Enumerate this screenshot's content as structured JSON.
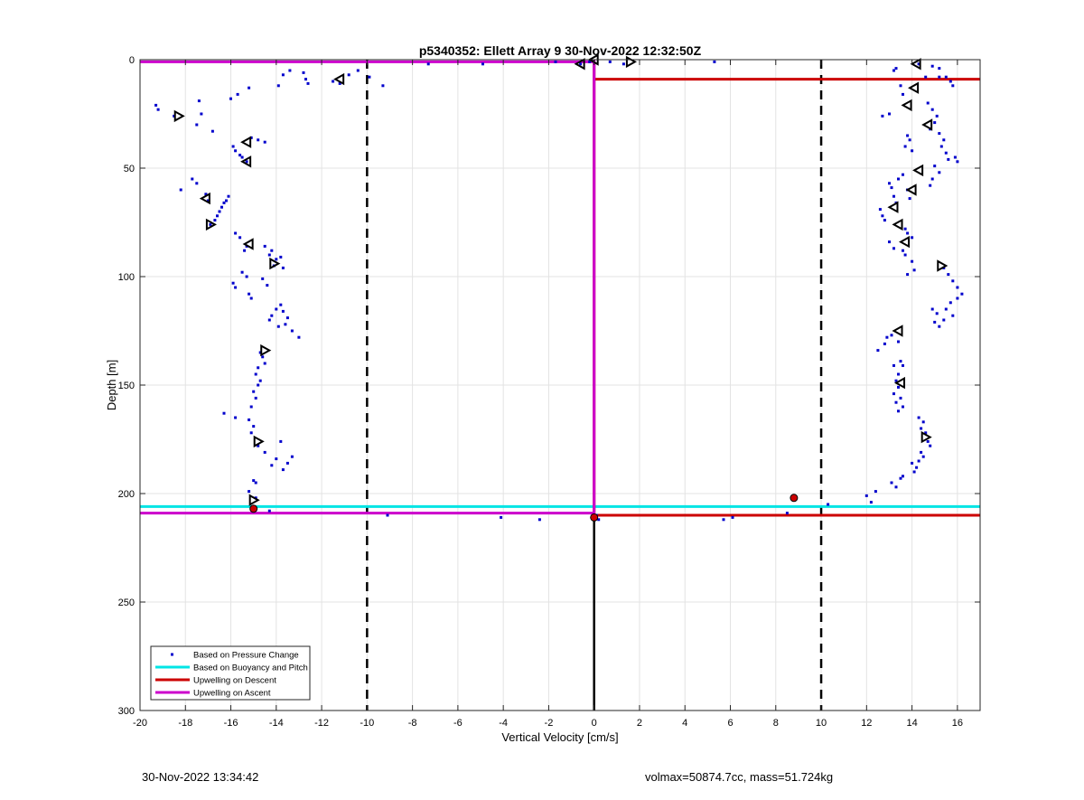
{
  "footer": {
    "left": "30-Nov-2022 13:34:42",
    "right": "volmax=50874.7cc, mass=51.724kg"
  },
  "chart_data": {
    "type": "scatter",
    "title": "p5340352: Ellett Array 9 30-Nov-2022 12:32:50Z",
    "xlabel": "Vertical Velocity [cm/s]",
    "ylabel": "Depth [m]",
    "xlim": [
      -20,
      17
    ],
    "ylim": [
      0,
      300
    ],
    "y_reversed": true,
    "grid": true,
    "x_ticks": [
      -20,
      -18,
      -16,
      -14,
      -12,
      -10,
      -8,
      -6,
      -4,
      -2,
      0,
      2,
      4,
      6,
      8,
      10,
      12,
      14,
      16
    ],
    "y_ticks": [
      0,
      50,
      100,
      150,
      200,
      250,
      300
    ],
    "legend_position": "bottom-left",
    "legend": [
      {
        "label": "Based on Pressure Change",
        "color": "#0000cc",
        "kind": "point"
      },
      {
        "label": "Based on Buoyancy and Pitch",
        "color": "#00e5e5",
        "kind": "line"
      },
      {
        "label": "Upwelling on Descent",
        "color": "#cc0000",
        "kind": "line"
      },
      {
        "label": "Upwelling on Ascent",
        "color": "#cc00cc",
        "kind": "line"
      }
    ],
    "reference_lines": [
      {
        "x": -10,
        "style": "dashed",
        "color": "#000000"
      },
      {
        "x": 10,
        "style": "dashed",
        "color": "#000000"
      },
      {
        "x": 0,
        "style": "solid",
        "color": "#000000"
      }
    ],
    "series": [
      {
        "name": "Based on Pressure Change",
        "color": "#0000cc",
        "points": [
          [
            -19.3,
            21
          ],
          [
            -19.2,
            23
          ],
          [
            -18.5,
            26
          ],
          [
            -18.2,
            60
          ],
          [
            -17.7,
            55
          ],
          [
            -17.5,
            57
          ],
          [
            -17.3,
            25
          ],
          [
            -17.5,
            30
          ],
          [
            -17.4,
            19
          ],
          [
            -17.1,
            62
          ],
          [
            -17.0,
            65
          ],
          [
            -16.9,
            76
          ],
          [
            -16.8,
            33
          ],
          [
            -16.7,
            74
          ],
          [
            -16.6,
            72
          ],
          [
            -16.5,
            70
          ],
          [
            -16.4,
            68
          ],
          [
            -16.3,
            66
          ],
          [
            -16.2,
            65
          ],
          [
            -16.1,
            63
          ],
          [
            -16.0,
            18
          ],
          [
            -15.9,
            40
          ],
          [
            -15.8,
            42
          ],
          [
            -15.6,
            44
          ],
          [
            -15.5,
            45
          ],
          [
            -15.3,
            47
          ],
          [
            -15.8,
            80
          ],
          [
            -15.6,
            82
          ],
          [
            -15.3,
            86
          ],
          [
            -15.4,
            88
          ],
          [
            -15.9,
            103
          ],
          [
            -15.8,
            105
          ],
          [
            -15.5,
            98
          ],
          [
            -15.3,
            100
          ],
          [
            -15.2,
            108
          ],
          [
            -15.1,
            110
          ],
          [
            -15.7,
            16
          ],
          [
            -15.2,
            13
          ],
          [
            -15.1,
            36
          ],
          [
            -14.8,
            37
          ],
          [
            -14.5,
            38
          ],
          [
            -14.3,
            90
          ],
          [
            -14.1,
            95
          ],
          [
            -14.0,
            92
          ],
          [
            -13.8,
            91
          ],
          [
            -13.7,
            96
          ],
          [
            -14.5,
            86
          ],
          [
            -14.2,
            88
          ],
          [
            -14.6,
            101
          ],
          [
            -14.4,
            104
          ],
          [
            -14.3,
            120
          ],
          [
            -14.2,
            118
          ],
          [
            -14.0,
            115
          ],
          [
            -13.9,
            123
          ],
          [
            -13.8,
            113
          ],
          [
            -13.7,
            116
          ],
          [
            -13.6,
            122
          ],
          [
            -13.5,
            119
          ],
          [
            -13.3,
            125
          ],
          [
            -13.0,
            128
          ],
          [
            -14.7,
            135
          ],
          [
            -14.6,
            137
          ],
          [
            -14.5,
            140
          ],
          [
            -14.8,
            142
          ],
          [
            -14.9,
            145
          ],
          [
            -14.7,
            148
          ],
          [
            -14.8,
            150
          ],
          [
            -15.0,
            153
          ],
          [
            -14.9,
            156
          ],
          [
            -15.1,
            160
          ],
          [
            -15.2,
            166
          ],
          [
            -15.0,
            169
          ],
          [
            -15.1,
            172
          ],
          [
            -16.3,
            163
          ],
          [
            -15.8,
            165
          ],
          [
            -14.8,
            178
          ],
          [
            -14.5,
            181
          ],
          [
            -14.2,
            187
          ],
          [
            -14.0,
            184
          ],
          [
            -13.8,
            176
          ],
          [
            -13.7,
            189
          ],
          [
            -13.5,
            186
          ],
          [
            -13.3,
            183
          ],
          [
            -14.9,
            195
          ],
          [
            -15.2,
            199
          ],
          [
            -14.9,
            202
          ],
          [
            -15.0,
            194
          ],
          [
            -14.3,
            208
          ],
          [
            -13.9,
            12
          ],
          [
            -13.7,
            7
          ],
          [
            -13.4,
            5
          ],
          [
            -12.8,
            6
          ],
          [
            -12.7,
            9
          ],
          [
            -12.6,
            11
          ],
          [
            -11.5,
            10
          ],
          [
            -11.2,
            11
          ],
          [
            -10.8,
            7
          ],
          [
            -10.4,
            5
          ],
          [
            -9.9,
            8
          ],
          [
            -9.3,
            12
          ],
          [
            -9.1,
            210
          ],
          [
            -7.3,
            2
          ],
          [
            -4.9,
            2
          ],
          [
            -4.1,
            211
          ],
          [
            -2.4,
            212
          ],
          [
            -1.7,
            1
          ],
          [
            -0.6,
            2
          ],
          [
            -0.2,
            1
          ],
          [
            0.1,
            210
          ],
          [
            0.2,
            212
          ],
          [
            0.7,
            1
          ],
          [
            1.3,
            2
          ],
          [
            5.3,
            1
          ],
          [
            5.7,
            212
          ],
          [
            6.1,
            211
          ],
          [
            8.5,
            209
          ],
          [
            10.3,
            205
          ],
          [
            12.0,
            201
          ],
          [
            12.2,
            204
          ],
          [
            12.4,
            199
          ],
          [
            12.5,
            134
          ],
          [
            12.6,
            69
          ],
          [
            12.7,
            72
          ],
          [
            12.8,
            74
          ],
          [
            12.7,
            26
          ],
          [
            12.9,
            128
          ],
          [
            12.8,
            131
          ],
          [
            13.0,
            25
          ],
          [
            13.1,
            127
          ],
          [
            13.2,
            141
          ],
          [
            13.3,
            197
          ],
          [
            13.1,
            195
          ],
          [
            13.0,
            84
          ],
          [
            13.2,
            87
          ],
          [
            13.4,
            130
          ],
          [
            13.5,
            193
          ],
          [
            13.6,
            192
          ],
          [
            13.2,
            5
          ],
          [
            13.3,
            4
          ],
          [
            13.5,
            12
          ],
          [
            13.6,
            16
          ],
          [
            13.2,
            63
          ],
          [
            13.3,
            66
          ],
          [
            13.0,
            57
          ],
          [
            13.1,
            59
          ],
          [
            13.4,
            55
          ],
          [
            13.6,
            53
          ],
          [
            13.4,
            145
          ],
          [
            13.3,
            148
          ],
          [
            13.4,
            151
          ],
          [
            13.2,
            154
          ],
          [
            13.5,
            156
          ],
          [
            13.3,
            158
          ],
          [
            13.6,
            160
          ],
          [
            13.4,
            162
          ],
          [
            13.5,
            139
          ],
          [
            13.6,
            141
          ],
          [
            13.8,
            35
          ],
          [
            13.9,
            37
          ],
          [
            13.7,
            40
          ],
          [
            14.0,
            42
          ],
          [
            13.8,
            60
          ],
          [
            13.9,
            64
          ],
          [
            13.7,
            78
          ],
          [
            13.8,
            80
          ],
          [
            14.0,
            82
          ],
          [
            13.6,
            88
          ],
          [
            13.7,
            90
          ],
          [
            14.0,
            93
          ],
          [
            14.1,
            97
          ],
          [
            13.8,
            99
          ],
          [
            14.0,
            186
          ],
          [
            14.2,
            188
          ],
          [
            14.1,
            190
          ],
          [
            14.3,
            185
          ],
          [
            14.5,
            183
          ],
          [
            14.4,
            181
          ],
          [
            14.3,
            165
          ],
          [
            14.5,
            167
          ],
          [
            14.4,
            170
          ],
          [
            14.6,
            172
          ],
          [
            14.7,
            176
          ],
          [
            14.8,
            178
          ],
          [
            14.3,
            2
          ],
          [
            14.6,
            8
          ],
          [
            14.9,
            3
          ],
          [
            15.2,
            4
          ],
          [
            15.5,
            8
          ],
          [
            15.2,
            8
          ],
          [
            15.7,
            10
          ],
          [
            15.8,
            12
          ],
          [
            14.7,
            20
          ],
          [
            14.9,
            23
          ],
          [
            15.1,
            26
          ],
          [
            15.0,
            29
          ],
          [
            14.8,
            32
          ],
          [
            15.2,
            34
          ],
          [
            15.4,
            37
          ],
          [
            15.3,
            40
          ],
          [
            15.5,
            43
          ],
          [
            15.6,
            46
          ],
          [
            15.9,
            45
          ],
          [
            16.0,
            47
          ],
          [
            15.0,
            49
          ],
          [
            15.2,
            52
          ],
          [
            14.9,
            55
          ],
          [
            14.8,
            58
          ],
          [
            15.4,
            96
          ],
          [
            15.6,
            99
          ],
          [
            15.8,
            102
          ],
          [
            16.0,
            105
          ],
          [
            16.2,
            108
          ],
          [
            16.0,
            110
          ],
          [
            15.7,
            112
          ],
          [
            15.5,
            115
          ],
          [
            15.8,
            118
          ],
          [
            15.4,
            120
          ],
          [
            15.2,
            123
          ],
          [
            15.0,
            121
          ],
          [
            14.9,
            115
          ],
          [
            15.1,
            117
          ]
        ]
      },
      {
        "name": "",
        "color": "#000000",
        "marker": "triangle-left",
        "points": [
          [
            14.2,
            2
          ],
          [
            14.1,
            13
          ],
          [
            13.8,
            21
          ],
          [
            14.7,
            30
          ],
          [
            14.3,
            51
          ],
          [
            14.0,
            60
          ],
          [
            13.2,
            68
          ],
          [
            13.4,
            76
          ],
          [
            13.7,
            84
          ],
          [
            13.4,
            125
          ],
          [
            13.5,
            149
          ],
          [
            -15.3,
            38
          ],
          [
            -15.3,
            47
          ],
          [
            -17.1,
            64
          ],
          [
            -15.2,
            85
          ],
          [
            -11.2,
            9
          ],
          [
            -0.6,
            2
          ],
          [
            0.0,
            0
          ]
        ]
      },
      {
        "name": "",
        "color": "#000000",
        "marker": "triangle-right",
        "points": [
          [
            15.3,
            95
          ],
          [
            14.6,
            174
          ],
          [
            -18.3,
            26
          ],
          [
            -16.9,
            76
          ],
          [
            -14.1,
            94
          ],
          [
            -14.5,
            134
          ],
          [
            -14.8,
            176
          ],
          [
            -15.0,
            203
          ],
          [
            1.6,
            1
          ]
        ]
      },
      {
        "name": "",
        "color": "#cc0000",
        "marker": "star",
        "points": [
          [
            8.8,
            202
          ],
          [
            -15.0,
            207
          ],
          [
            0.0,
            211
          ]
        ]
      },
      {
        "name": "Based on Buoyancy and Pitch",
        "type": "hline",
        "y": 206,
        "color": "#00e5e5"
      },
      {
        "name": "Upwelling on Descent",
        "type": "path",
        "color": "#cc0000",
        "points": [
          [
            17,
            9
          ],
          [
            0,
            9
          ],
          [
            0,
            1
          ],
          [
            0,
            210
          ],
          [
            17,
            210
          ]
        ]
      },
      {
        "name": "Upwelling on Ascent",
        "type": "path",
        "color": "#cc00cc",
        "points": [
          [
            -20,
            1
          ],
          [
            0,
            1
          ],
          [
            0,
            209
          ],
          [
            -20,
            209
          ]
        ]
      }
    ]
  }
}
